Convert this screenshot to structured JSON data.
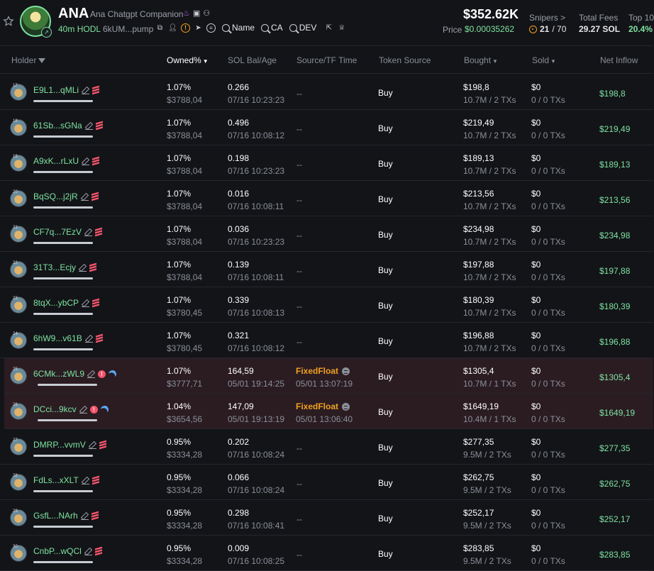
{
  "token": {
    "ticker": "ANA",
    "full_name": "Ana Chatgpt Companion",
    "age": "40m",
    "age_suffix": "HODL",
    "contract_short": "6kUM...pump",
    "search_links": [
      "Name",
      "CA",
      "DEV"
    ]
  },
  "stats": {
    "market_cap": "$352.62K",
    "price_label": "Price",
    "price": "$0.00035262",
    "snipers_label": "Snipers >",
    "snipers_current": "21",
    "snipers_total": "/ 70",
    "fees_label": "Total Fees",
    "fees_value": "29.27 SOL",
    "top10_label": "Top 10",
    "top10_value": "20.4%"
  },
  "columns": {
    "holder": "Holder",
    "owned": "Owned%",
    "sol_bal": "SOL Bal/Age",
    "source": "Source/TF Time",
    "token_source": "Token Source",
    "bought": "Bought",
    "sold": "Sold",
    "net": "Net Inflow"
  },
  "holders": [
    {
      "rank": "17",
      "addr": "E9L1...qMLi",
      "owned": "1.07%",
      "owned_usd": "$3788,04",
      "sol": "0.266",
      "time": "07/16 10:23:23",
      "src": "--",
      "src_time": "",
      "token_src": "Buy",
      "bought": "$198,8",
      "bought_sub": "10.7M / 2 TXs",
      "sold": "$0",
      "sold_sub": "0 / 0 TXs",
      "net": "$198,8",
      "flag": false
    },
    {
      "rank": "18",
      "addr": "61Sb...sGNa",
      "owned": "1.07%",
      "owned_usd": "$3788,04",
      "sol": "0.496",
      "time": "07/16 10:08:12",
      "src": "--",
      "src_time": "",
      "token_src": "Buy",
      "bought": "$219,49",
      "bought_sub": "10.7M / 2 TXs",
      "sold": "$0",
      "sold_sub": "0 / 0 TXs",
      "net": "$219,49",
      "flag": false
    },
    {
      "rank": "19",
      "addr": "A9xK...rLxU",
      "owned": "1.07%",
      "owned_usd": "$3788,04",
      "sol": "0.198",
      "time": "07/16 10:23:23",
      "src": "--",
      "src_time": "",
      "token_src": "Buy",
      "bought": "$189,13",
      "bought_sub": "10.7M / 2 TXs",
      "sold": "$0",
      "sold_sub": "0 / 0 TXs",
      "net": "$189,13",
      "flag": false
    },
    {
      "rank": "20",
      "addr": "BqSQ...j2jR",
      "owned": "1.07%",
      "owned_usd": "$3788,04",
      "sol": "0.016",
      "time": "07/16 10:08:11",
      "src": "--",
      "src_time": "",
      "token_src": "Buy",
      "bought": "$213,56",
      "bought_sub": "10.7M / 2 TXs",
      "sold": "$0",
      "sold_sub": "0 / 0 TXs",
      "net": "$213,56",
      "flag": false
    },
    {
      "rank": "21",
      "addr": "CF7q...7EzV",
      "owned": "1.07%",
      "owned_usd": "$3788,04",
      "sol": "0.036",
      "time": "07/16 10:23:23",
      "src": "--",
      "src_time": "",
      "token_src": "Buy",
      "bought": "$234,98",
      "bought_sub": "10.7M / 2 TXs",
      "sold": "$0",
      "sold_sub": "0 / 0 TXs",
      "net": "$234,98",
      "flag": false
    },
    {
      "rank": "22",
      "addr": "31T3...Ecjy",
      "owned": "1.07%",
      "owned_usd": "$3788,04",
      "sol": "0.139",
      "time": "07/16 10:08:11",
      "src": "--",
      "src_time": "",
      "token_src": "Buy",
      "bought": "$197,88",
      "bought_sub": "10.7M / 2 TXs",
      "sold": "$0",
      "sold_sub": "0 / 0 TXs",
      "net": "$197,88",
      "flag": false
    },
    {
      "rank": "23",
      "addr": "8tqX...ybCP",
      "owned": "1.07%",
      "owned_usd": "$3780,45",
      "sol": "0.339",
      "time": "07/16 10:08:13",
      "src": "--",
      "src_time": "",
      "token_src": "Buy",
      "bought": "$180,39",
      "bought_sub": "10.7M / 2 TXs",
      "sold": "$0",
      "sold_sub": "0 / 0 TXs",
      "net": "$180,39",
      "flag": false
    },
    {
      "rank": "24",
      "addr": "6hW9...v61B",
      "owned": "1.07%",
      "owned_usd": "$3780,45",
      "sol": "0.321",
      "time": "07/16 10:08:12",
      "src": "--",
      "src_time": "",
      "token_src": "Buy",
      "bought": "$196,88",
      "bought_sub": "10.7M / 2 TXs",
      "sold": "$0",
      "sold_sub": "0 / 0 TXs",
      "net": "$196,88",
      "flag": false
    },
    {
      "rank": "25",
      "addr": "6CMk...zWL9",
      "owned": "1.07%",
      "owned_usd": "$3777,71",
      "sol": "164,59",
      "time": "05/01 19:14:25",
      "src": "FixedFloat",
      "src_time": "05/01 13:07:19",
      "token_src": "Buy",
      "bought": "$1305,4",
      "bought_sub": "10.7M / 1 TXs",
      "sold": "$0",
      "sold_sub": "0 / 0 TXs",
      "net": "$1305,4",
      "flag": true
    },
    {
      "rank": "26",
      "addr": "DCci...9kcv",
      "owned": "1.04%",
      "owned_usd": "$3654,56",
      "sol": "147,09",
      "time": "05/01 19:13:19",
      "src": "FixedFloat",
      "src_time": "05/01 13:06:40",
      "token_src": "Buy",
      "bought": "$1649,19",
      "bought_sub": "10.4M / 1 TXs",
      "sold": "$0",
      "sold_sub": "0 / 0 TXs",
      "net": "$1649,19",
      "flag": true
    },
    {
      "rank": "27",
      "addr": "DMRP...vvmV",
      "owned": "0.95%",
      "owned_usd": "$3334,28",
      "sol": "0.202",
      "time": "07/16 10:08:24",
      "src": "--",
      "src_time": "",
      "token_src": "Buy",
      "bought": "$277,35",
      "bought_sub": "9.5M / 2 TXs",
      "sold": "$0",
      "sold_sub": "0 / 0 TXs",
      "net": "$277,35",
      "flag": false
    },
    {
      "rank": "28",
      "addr": "FdLs...xXLT",
      "owned": "0.95%",
      "owned_usd": "$3334,28",
      "sol": "0.066",
      "time": "07/16 10:08:24",
      "src": "--",
      "src_time": "",
      "token_src": "Buy",
      "bought": "$262,75",
      "bought_sub": "9.5M / 2 TXs",
      "sold": "$0",
      "sold_sub": "0 / 0 TXs",
      "net": "$262,75",
      "flag": false
    },
    {
      "rank": "29",
      "addr": "GsfL...NArh",
      "owned": "0.95%",
      "owned_usd": "$3334,28",
      "sol": "0.298",
      "time": "07/16 10:08:41",
      "src": "--",
      "src_time": "",
      "token_src": "Buy",
      "bought": "$252,17",
      "bought_sub": "9.5M / 2 TXs",
      "sold": "$0",
      "sold_sub": "0 / 0 TXs",
      "net": "$252,17",
      "flag": false
    },
    {
      "rank": "30",
      "addr": "CnbP...wQCl",
      "owned": "0.95%",
      "owned_usd": "$3334,28",
      "sol": "0.009",
      "time": "07/16 10:08:25",
      "src": "--",
      "src_time": "",
      "token_src": "Buy",
      "bought": "$283,85",
      "bought_sub": "9.5M / 2 TXs",
      "sold": "$0",
      "sold_sub": "0 / 0 TXs",
      "net": "$283,85",
      "flag": false
    }
  ],
  "colors": {
    "background": "#131418",
    "positive": "#7ee3a1",
    "flagged_row": "#2b1c22",
    "source_highlight": "#f0a020",
    "danger": "#f2546b"
  }
}
